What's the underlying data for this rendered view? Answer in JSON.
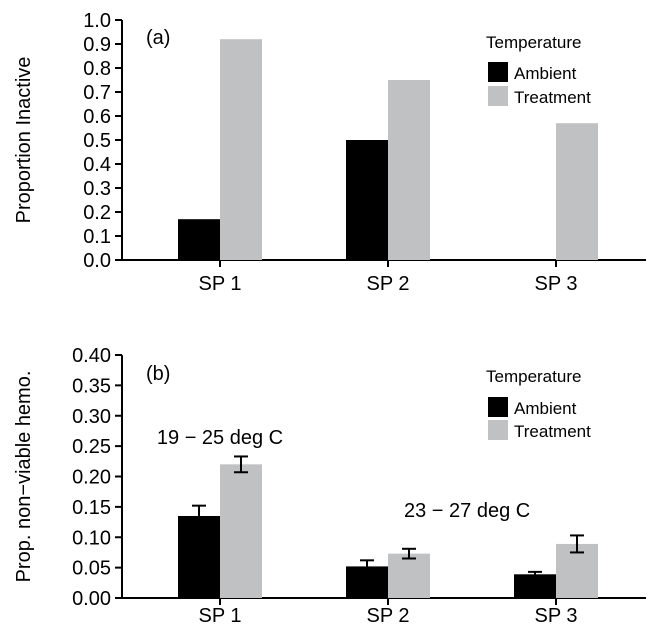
{
  "chart_data": [
    {
      "type": "bar",
      "panel_label": "(a)",
      "ylabel": "Proportion Inactive",
      "ylim": [
        0,
        1.0
      ],
      "ytick_values": [
        0,
        0.1,
        0.2,
        0.3,
        0.4,
        0.5,
        0.6,
        0.7,
        0.8,
        0.9,
        1.0
      ],
      "ytick_labels": [
        "0.0",
        "0.1",
        "0.2",
        "0.3",
        "0.4",
        "0.5",
        "0.6",
        "0.7",
        "0.8",
        "0.9",
        "1.0"
      ],
      "categories": [
        "SP 1",
        "SP 2",
        "SP 3"
      ],
      "legend": {
        "title": "Temperature",
        "placement": "top-right"
      },
      "series": [
        {
          "name": "Ambient",
          "color": "#000000",
          "values": [
            0.17,
            0.5,
            0.0
          ]
        },
        {
          "name": "Treatment",
          "color": "#c0c1c3",
          "values": [
            0.92,
            0.75,
            0.57
          ]
        }
      ],
      "grid": false,
      "annotations": []
    },
    {
      "type": "bar",
      "panel_label": "(b)",
      "ylabel": "Prop. non−viable hemo.",
      "ylim": [
        0,
        0.4
      ],
      "ytick_values": [
        0,
        0.05,
        0.1,
        0.15,
        0.2,
        0.25,
        0.3,
        0.35,
        0.4
      ],
      "ytick_labels": [
        "0.00",
        "0.05",
        "0.10",
        "0.15",
        "0.20",
        "0.25",
        "0.30",
        "0.35",
        "0.40"
      ],
      "categories": [
        "SP 1",
        "SP 2",
        "SP 3"
      ],
      "legend": {
        "title": "Temperature",
        "placement": "top-right"
      },
      "series": [
        {
          "name": "Ambient",
          "color": "#000000",
          "values": [
            0.135,
            0.052,
            0.039
          ],
          "errors": [
            0.017,
            0.01,
            0.004
          ]
        },
        {
          "name": "Treatment",
          "color": "#c0c1c3",
          "values": [
            0.22,
            0.073,
            0.089
          ],
          "errors": [
            0.013,
            0.008,
            0.014
          ]
        }
      ],
      "grid": false,
      "annotations": [
        {
          "text": "19 − 25 deg C",
          "category": "SP 1",
          "value": 0.265
        },
        {
          "text": "23 − 27 deg C",
          "category": "SP 2",
          "value": 0.145,
          "align": "left"
        }
      ]
    }
  ]
}
